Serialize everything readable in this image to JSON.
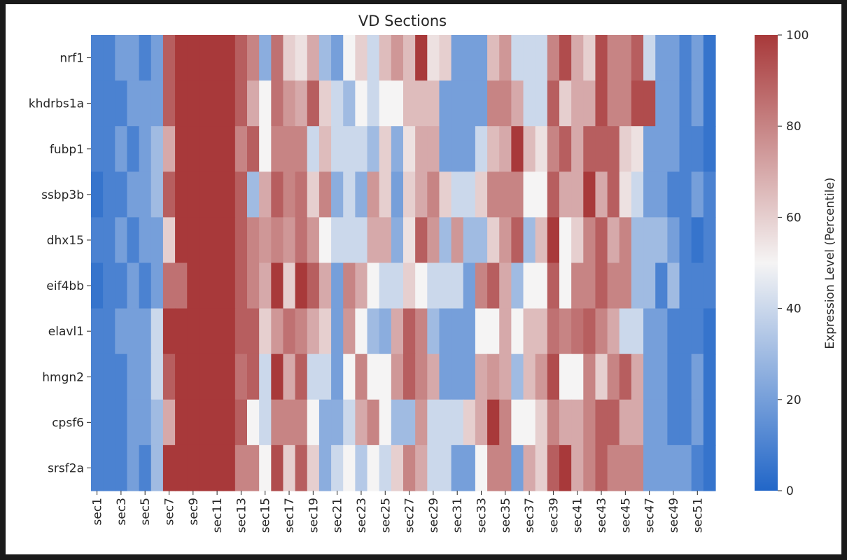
{
  "chart_data": {
    "type": "heatmap",
    "title": "VD Sections",
    "xlabel": "",
    "ylabel": "",
    "rows": [
      "nrf1",
      "khdrbs1a",
      "fubp1",
      "ssbp3b",
      "dhx15",
      "eif4bb",
      "elavl1",
      "hmgn2",
      "cpsf6",
      "srsf2a"
    ],
    "columns": [
      "sec1",
      "sec2",
      "sec3",
      "sec4",
      "sec5",
      "sec6",
      "sec7",
      "sec8",
      "sec9",
      "sec10",
      "sec11",
      "sec12",
      "sec13",
      "sec14",
      "sec15",
      "sec16",
      "sec17",
      "sec18",
      "sec19",
      "sec20",
      "sec21",
      "sec22",
      "sec23",
      "sec24",
      "sec25",
      "sec26",
      "sec27",
      "sec28",
      "sec29",
      "sec30",
      "sec31",
      "sec32",
      "sec33",
      "sec34",
      "sec35",
      "sec36",
      "sec37",
      "sec38",
      "sec39",
      "sec40",
      "sec41",
      "sec42",
      "sec43",
      "sec44",
      "sec45",
      "sec46",
      "sec47",
      "sec48",
      "sec49",
      "sec50",
      "sec51",
      "sec52"
    ],
    "x_tick_labels": [
      "sec1",
      "sec3",
      "sec5",
      "sec7",
      "sec9",
      "sec11",
      "sec13",
      "sec15",
      "sec17",
      "sec19",
      "sec21",
      "sec23",
      "sec25",
      "sec27",
      "sec29",
      "sec31",
      "sec33",
      "sec35",
      "sec37",
      "sec39",
      "sec41",
      "sec43",
      "sec45",
      "sec47",
      "sec49",
      "sec51"
    ],
    "values": [
      [
        10,
        10,
        20,
        20,
        10,
        20,
        90,
        100,
        100,
        100,
        100,
        100,
        90,
        80,
        25,
        85,
        60,
        55,
        70,
        30,
        20,
        50,
        60,
        40,
        65,
        75,
        65,
        100,
        55,
        60,
        20,
        20,
        20,
        65,
        75,
        40,
        40,
        40,
        80,
        95,
        70,
        60,
        95,
        80,
        80,
        90,
        40,
        20,
        20,
        10,
        20,
        5
      ],
      [
        10,
        10,
        10,
        20,
        20,
        20,
        90,
        100,
        100,
        100,
        100,
        100,
        90,
        70,
        50,
        85,
        75,
        70,
        90,
        60,
        40,
        30,
        50,
        40,
        50,
        50,
        65,
        65,
        65,
        20,
        20,
        20,
        20,
        80,
        80,
        70,
        40,
        40,
        90,
        60,
        70,
        70,
        95,
        80,
        80,
        95,
        95,
        20,
        20,
        10,
        20,
        5
      ],
      [
        10,
        10,
        20,
        10,
        20,
        30,
        70,
        100,
        100,
        100,
        100,
        100,
        80,
        90,
        50,
        80,
        80,
        80,
        40,
        65,
        40,
        40,
        40,
        30,
        60,
        25,
        55,
        70,
        70,
        20,
        20,
        20,
        40,
        65,
        70,
        100,
        65,
        55,
        80,
        90,
        70,
        90,
        90,
        90,
        60,
        55,
        20,
        20,
        20,
        10,
        10,
        5
      ],
      [
        5,
        10,
        10,
        20,
        20,
        30,
        90,
        100,
        100,
        100,
        100,
        100,
        90,
        30,
        70,
        90,
        80,
        85,
        60,
        80,
        25,
        40,
        25,
        75,
        60,
        20,
        60,
        70,
        80,
        60,
        40,
        40,
        60,
        80,
        80,
        80,
        50,
        50,
        90,
        70,
        70,
        100,
        70,
        90,
        55,
        40,
        20,
        20,
        10,
        10,
        20,
        10
      ],
      [
        10,
        10,
        20,
        10,
        20,
        20,
        60,
        100,
        100,
        100,
        100,
        100,
        90,
        80,
        75,
        80,
        75,
        85,
        75,
        50,
        40,
        40,
        40,
        70,
        70,
        25,
        55,
        90,
        75,
        30,
        75,
        30,
        30,
        60,
        75,
        90,
        30,
        65,
        100,
        50,
        60,
        80,
        90,
        70,
        80,
        30,
        30,
        30,
        20,
        10,
        5,
        10
      ],
      [
        5,
        10,
        10,
        20,
        10,
        20,
        85,
        85,
        100,
        100,
        100,
        100,
        90,
        80,
        70,
        100,
        60,
        100,
        90,
        70,
        20,
        80,
        70,
        50,
        40,
        40,
        60,
        50,
        40,
        40,
        40,
        20,
        80,
        90,
        70,
        30,
        50,
        50,
        90,
        50,
        80,
        80,
        90,
        80,
        80,
        30,
        30,
        10,
        30,
        10,
        10,
        10
      ],
      [
        10,
        10,
        20,
        20,
        20,
        40,
        100,
        100,
        100,
        100,
        100,
        100,
        90,
        90,
        60,
        75,
        85,
        80,
        70,
        60,
        20,
        75,
        50,
        30,
        25,
        70,
        90,
        80,
        30,
        20,
        20,
        20,
        50,
        50,
        70,
        50,
        65,
        65,
        85,
        80,
        85,
        90,
        80,
        70,
        40,
        40,
        20,
        20,
        10,
        10,
        10,
        5
      ],
      [
        10,
        10,
        10,
        20,
        20,
        40,
        90,
        100,
        100,
        100,
        100,
        100,
        85,
        90,
        40,
        100,
        70,
        90,
        40,
        40,
        20,
        50,
        80,
        50,
        50,
        75,
        90,
        80,
        70,
        20,
        20,
        20,
        70,
        75,
        70,
        30,
        65,
        75,
        95,
        50,
        50,
        80,
        60,
        80,
        90,
        70,
        20,
        20,
        10,
        10,
        20,
        5
      ],
      [
        10,
        10,
        10,
        20,
        20,
        30,
        70,
        100,
        100,
        100,
        100,
        100,
        90,
        50,
        40,
        80,
        80,
        80,
        50,
        25,
        25,
        40,
        70,
        80,
        50,
        30,
        30,
        75,
        40,
        40,
        40,
        60,
        70,
        100,
        80,
        50,
        50,
        60,
        80,
        70,
        70,
        80,
        90,
        90,
        70,
        70,
        20,
        20,
        10,
        10,
        20,
        5
      ],
      [
        10,
        10,
        10,
        20,
        10,
        30,
        100,
        100,
        100,
        100,
        100,
        100,
        80,
        80,
        50,
        95,
        60,
        90,
        60,
        25,
        40,
        50,
        35,
        50,
        40,
        60,
        80,
        70,
        40,
        40,
        20,
        20,
        50,
        80,
        80,
        20,
        70,
        60,
        90,
        100,
        70,
        80,
        90,
        80,
        80,
        80,
        20,
        20,
        20,
        20,
        10,
        5
      ]
    ],
    "colorbar": {
      "label": "Expression Level (Percentile)",
      "ticks": [
        0,
        20,
        40,
        60,
        80,
        100
      ],
      "vmin": 0,
      "vmax": 100
    },
    "colormap_stops": [
      "#2166c8",
      "#f5f4f4",
      "#a8393a"
    ]
  }
}
